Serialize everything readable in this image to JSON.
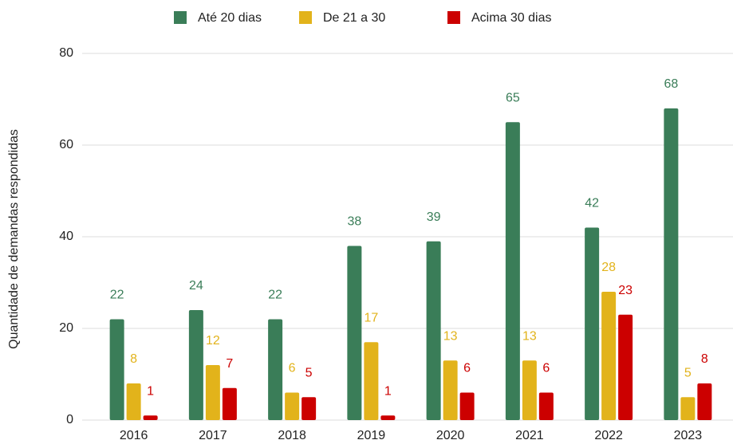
{
  "chart_data": {
    "type": "bar",
    "categories": [
      "2016",
      "2017",
      "2018",
      "2019",
      "2020",
      "2021",
      "2022",
      "2023"
    ],
    "series": [
      {
        "name": "Até 20 dias",
        "color": "#3a7d58",
        "values": [
          22,
          24,
          22,
          38,
          39,
          65,
          42,
          68
        ]
      },
      {
        "name": "De 21 a 30",
        "color": "#e2b31b",
        "values": [
          8,
          12,
          6,
          17,
          13,
          13,
          28,
          5
        ]
      },
      {
        "name": "Acima 30 dias",
        "color": "#cc0000",
        "values": [
          1,
          7,
          5,
          1,
          6,
          6,
          23,
          8
        ]
      }
    ],
    "y_label": "Quantidade de demandas respondidas",
    "ylim": [
      0,
      80
    ],
    "yticks": [
      0,
      20,
      40,
      60,
      80
    ],
    "grid": true,
    "legend": "top"
  }
}
